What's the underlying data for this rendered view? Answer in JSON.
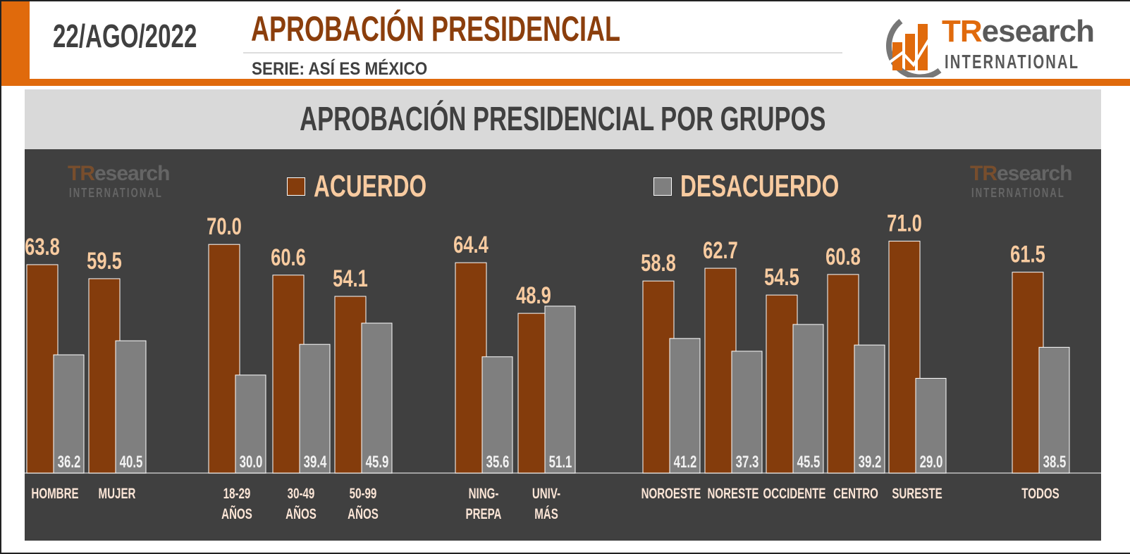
{
  "header": {
    "date": "22/AGO/2022",
    "title": "APROBACIÓN PRESIDENCIAL",
    "subtitle": "SERIE: ASÍ ES MÉXICO"
  },
  "logo": {
    "brand_tr": "TR",
    "brand_rest": "esearch",
    "brand_sub": "INTERNATIONAL"
  },
  "colors": {
    "acuerdo": "#843c0c",
    "desacuerdo": "#7f7f7f",
    "accent": "#e06a0c",
    "panel": "#404040",
    "label": "#f8cba0"
  },
  "chart_data": {
    "type": "bar",
    "title": "APROBACIÓN PRESIDENCIAL POR GRUPOS",
    "categories": [
      [
        "HOMBRE"
      ],
      [
        "MUJER"
      ],
      [
        "18-29",
        "AÑOS"
      ],
      [
        "30-49",
        "AÑOS"
      ],
      [
        "50-99",
        "AÑOS"
      ],
      [
        "NING-",
        "PREPA"
      ],
      [
        "UNIV-",
        "MÁS"
      ],
      [
        "NOROESTE"
      ],
      [
        "NORESTE"
      ],
      [
        "OCCIDENTE"
      ],
      [
        "CENTRO"
      ],
      [
        "SURESTE"
      ],
      [
        "TODOS"
      ]
    ],
    "series": [
      {
        "name": "ACUERDO",
        "values": [
          63.8,
          59.5,
          70.0,
          60.6,
          54.1,
          64.4,
          48.9,
          58.8,
          62.7,
          54.5,
          60.8,
          71.0,
          61.5
        ]
      },
      {
        "name": "DESACUERDO",
        "values": [
          36.2,
          40.5,
          30.0,
          39.4,
          45.9,
          35.6,
          51.1,
          41.2,
          37.3,
          45.5,
          39.2,
          29.0,
          38.5
        ]
      }
    ],
    "ylim": [
      0,
      100
    ],
    "grid": false,
    "legend": "top"
  }
}
